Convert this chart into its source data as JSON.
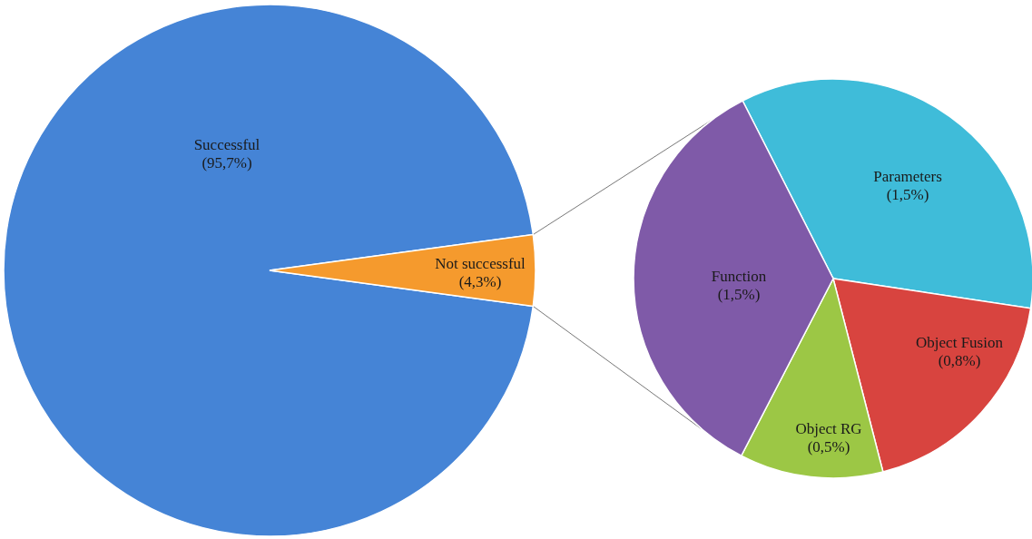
{
  "chart_data": [
    {
      "type": "pie",
      "categories": [
        "Successful",
        "Not successful"
      ],
      "values": [
        95.7,
        4.3
      ],
      "value_labels": [
        "(95,7%)",
        "(4,3%)"
      ],
      "colors": [
        "#4584d6",
        "#f59a2d"
      ]
    },
    {
      "type": "pie",
      "categories": [
        "Parameters",
        "Object Fusion",
        "Object RG",
        "Function"
      ],
      "values": [
        1.5,
        0.8,
        0.5,
        1.5
      ],
      "value_labels": [
        "(1,5%)",
        "(0,8%)",
        "(0,5%)",
        "(1,5%)"
      ],
      "colors": [
        "#3fbcd9",
        "#d8443f",
        "#9cc745",
        "#7f5aa8"
      ]
    }
  ]
}
